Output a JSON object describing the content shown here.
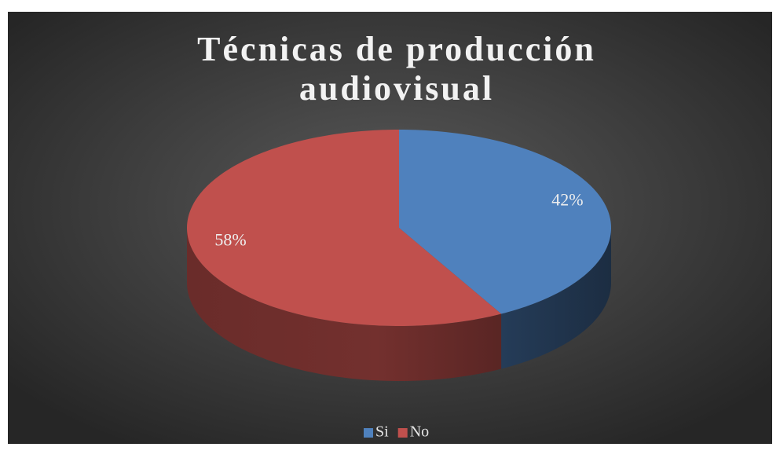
{
  "chart_data": {
    "type": "pie",
    "title": "Técnicas de producción audiovisual",
    "categories": [
      "Si",
      "No"
    ],
    "values": [
      42,
      58
    ],
    "value_labels": [
      "42%",
      "58%"
    ],
    "colors": [
      "#4f81bd",
      "#c0504d"
    ],
    "legend": "bottom"
  }
}
